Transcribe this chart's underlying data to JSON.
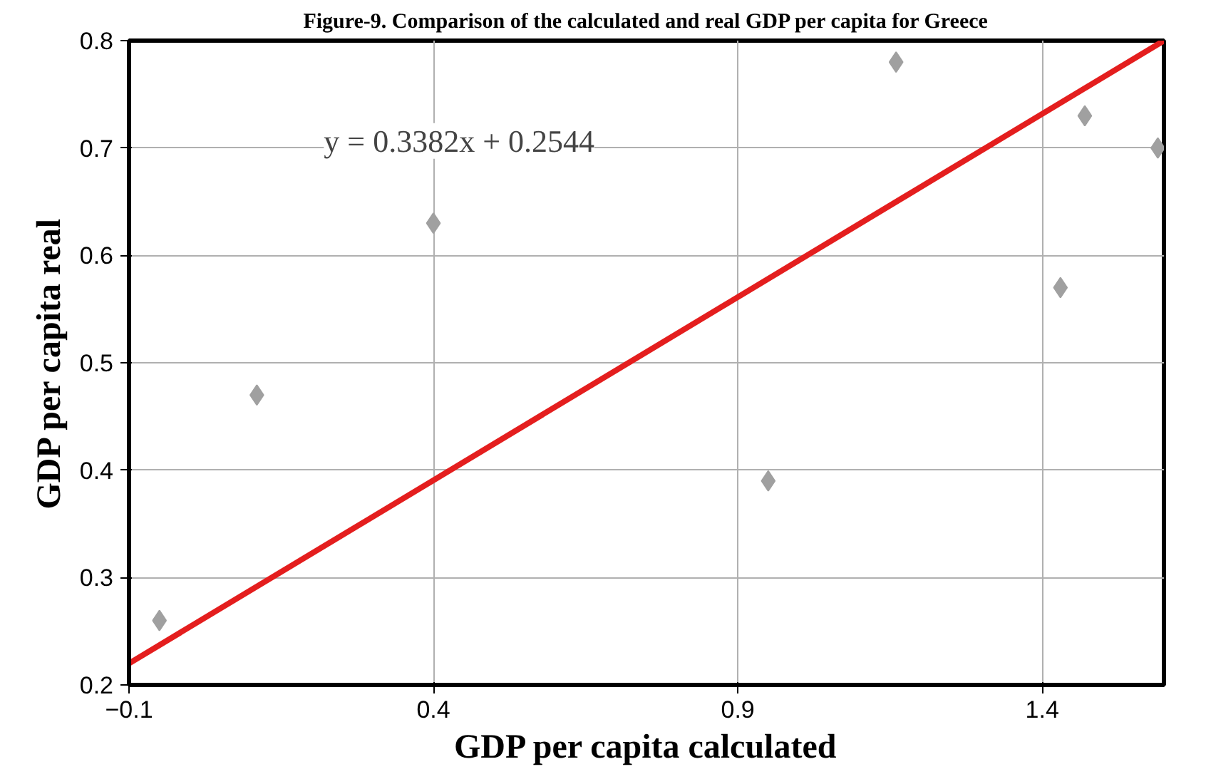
{
  "chart_data": {
    "type": "scatter",
    "title": "Figure-9. Comparison of the calculated and real GDP per capita for Greece",
    "xlabel": "GDP per capita calculated",
    "ylabel": "GDP per capita real",
    "series": [
      {
        "color": "#a0a0a0",
        "marker": "diamond",
        "x": [
          -0.05,
          0.11,
          0.4,
          0.95,
          1.16,
          1.43,
          1.47,
          1.59
        ],
        "values": [
          0.26,
          0.47,
          0.63,
          0.39,
          0.78,
          0.57,
          0.73,
          0.7
        ]
      },
      {
        "type": "line",
        "color": "#e41e1e",
        "marker": "none",
        "line_style": "solid",
        "x": [
          -0.1,
          1.6
        ],
        "values": [
          0.22,
          0.8
        ]
      }
    ],
    "annotations": [
      "y = 0.3382x + 0.2544"
    ],
    "xlim": [
      -0.1,
      1.6
    ],
    "ylim": [
      0.2,
      0.8
    ],
    "xticks": [
      -0.1,
      0.4,
      0.9,
      1.4
    ],
    "yticks": [
      0.2,
      0.3,
      0.4,
      0.5,
      0.6,
      0.7,
      0.8
    ],
    "grid": true
  }
}
